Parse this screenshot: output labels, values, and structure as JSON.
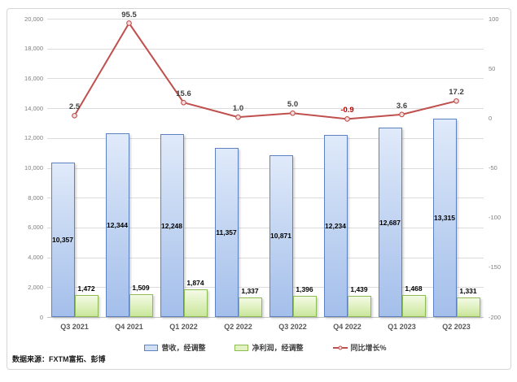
{
  "source_note": "数据来源：FXTM富拓、彭博",
  "colors": {
    "revenue_border": "#5d81c1",
    "revenue_fill_top": "#e0eafa",
    "revenue_fill_bottom": "#a4bfeb",
    "profit_border": "#8fbb55",
    "profit_fill_top": "#f3fae5",
    "profit_fill_bottom": "#c9e69b",
    "line": "#c0504d",
    "marker_fill": "#f4dddc",
    "gridline": "#dcdcdc",
    "axis_text": "#7f7f7f",
    "x_axis_text": "#595959",
    "bar_label_text": "#000000",
    "line_label_text": "#404040",
    "negative_label_text": "#c00000"
  },
  "chart_data": {
    "type": "combo-bar-line",
    "categories": [
      "Q3 2021",
      "Q4 2021",
      "Q1 2022",
      "Q2 2022",
      "Q3 2022",
      "Q4 2022",
      "Q1 2023",
      "Q2 2023"
    ],
    "series": [
      {
        "name": "营收，经调整",
        "type": "bar",
        "axis": "left",
        "values": [
          10357,
          12344,
          12248,
          11357,
          10871,
          12234,
          12687,
          13315
        ],
        "labels": [
          "10,357",
          "12,344",
          "12,248",
          "11,357",
          "10,871",
          "12,234",
          "12,687",
          "13,315"
        ]
      },
      {
        "name": "净利润，经调整",
        "type": "bar",
        "axis": "left",
        "values": [
          1472,
          1509,
          1874,
          1337,
          1396,
          1439,
          1468,
          1331
        ],
        "labels": [
          "1,472",
          "1,509",
          "1,874",
          "1,337",
          "1,396",
          "1,439",
          "1,468",
          "1,331"
        ]
      },
      {
        "name": "同比增长%",
        "type": "line",
        "axis": "right",
        "values": [
          2.5,
          95.5,
          15.6,
          1.0,
          5.0,
          -0.9,
          3.6,
          17.2
        ],
        "labels": [
          "2.5",
          "95.5",
          "15.6",
          "1.0",
          "5.0",
          "-0.9",
          "3.6",
          "17.2"
        ]
      }
    ],
    "left_axis": {
      "min": 0,
      "max": 20000,
      "step": 2000,
      "tick_labels": [
        "0",
        "2,000",
        "4,000",
        "6,000",
        "8,000",
        "10,000",
        "12,000",
        "14,000",
        "16,000",
        "18,000",
        "20,000"
      ]
    },
    "right_axis": {
      "min": -200,
      "max": 100,
      "step": 50,
      "tick_labels": [
        "-200",
        "-150",
        "-100",
        "-50",
        "0",
        "50",
        "100"
      ]
    },
    "grid": "horizontal",
    "legend_position": "bottom"
  }
}
